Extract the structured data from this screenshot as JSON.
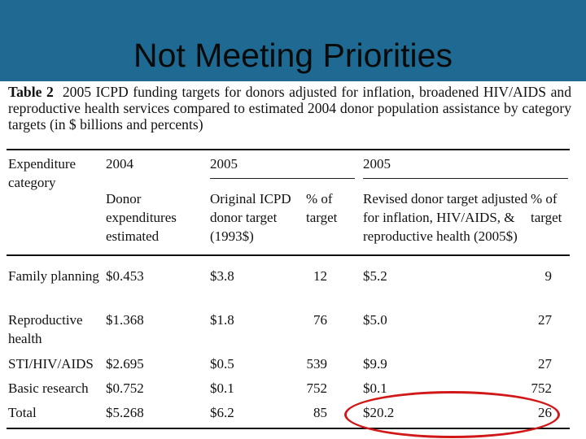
{
  "slide": {
    "title": "Not Meeting Priorities"
  },
  "table": {
    "label": "Table 2",
    "caption": "2005 ICPD funding targets for donors adjusted for inflation, broadened HIV/AIDS and reproductive health services compared to estimated 2004 donor population assistance by category targets (in $ billions and percents)",
    "headers": {
      "category": "Expenditure category",
      "year_2004": "2004",
      "year_2005_original": "2005",
      "year_2005_revised": "2005",
      "donor_expenditures": "Donor expenditures estimated",
      "original_target": "Original ICPD donor target (1993$)",
      "pct_original": "% of target",
      "revised_target": "Revised donor target adjusted for inflation, HIV/AIDS, & reproductive health (2005$)",
      "pct_revised": "% of target"
    },
    "rows": [
      {
        "category": "Family planning",
        "donor_2004": "$0.453",
        "original": "$3.8",
        "pct_original": "12",
        "revised": "$5.2",
        "pct_revised": "9"
      },
      {
        "category": "Reproductive health",
        "donor_2004": "$1.368",
        "original": "$1.8",
        "pct_original": "76",
        "revised": "$5.0",
        "pct_revised": "27"
      },
      {
        "category": "STI/HIV/AIDS",
        "donor_2004": "$2.695",
        "original": "$0.5",
        "pct_original": "539",
        "revised": "$9.9",
        "pct_revised": "27"
      },
      {
        "category": "Basic research",
        "donor_2004": "$0.752",
        "original": "$0.1",
        "pct_original": "752",
        "revised": "$0.1",
        "pct_revised": "752"
      },
      {
        "category": "Total",
        "donor_2004": "$5.268",
        "original": "$6.2",
        "pct_original": "85",
        "revised": "$20.2",
        "pct_revised": "26"
      }
    ]
  },
  "colors": {
    "title_bar": "#1f6a93",
    "highlight_circle": "#d11818"
  }
}
